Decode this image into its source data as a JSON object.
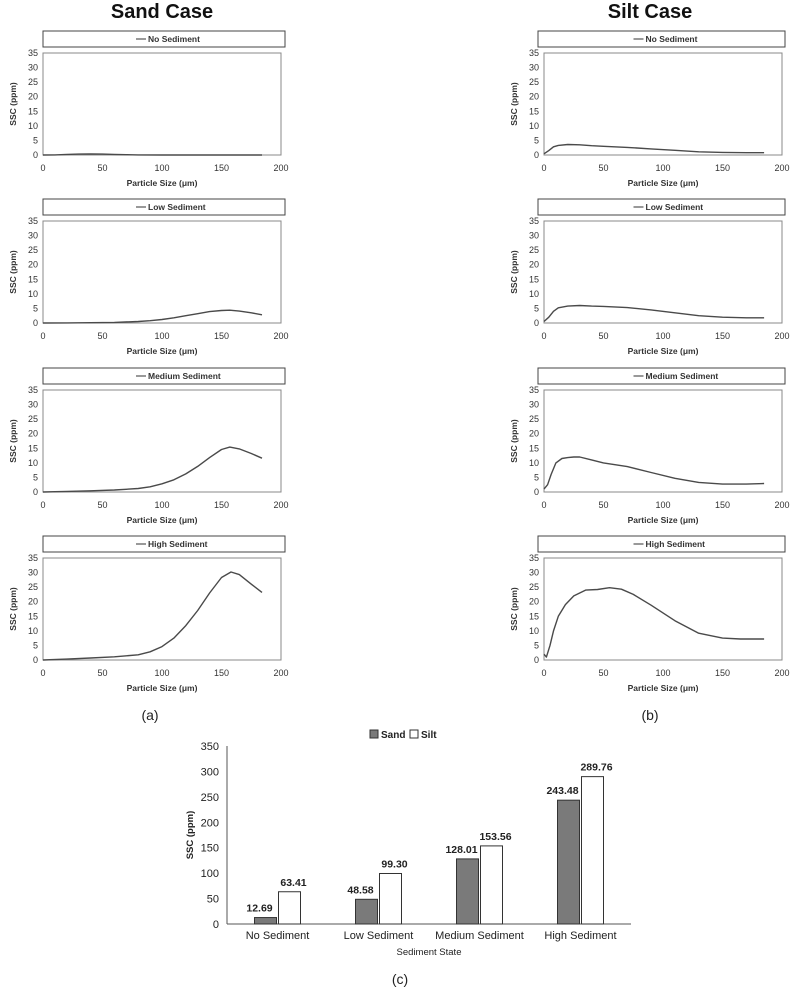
{
  "panel_titles": {
    "sand": "Sand Case",
    "silt": "Silt Case"
  },
  "subfigure_labels": {
    "a": "(a)",
    "b": "(b)",
    "c": "(c)"
  },
  "chart_data": [
    {
      "type": "line",
      "panel": "(a)",
      "case": "Sand Case",
      "legend": "No Sediment",
      "xlabel": "Particle Size (μm)",
      "ylabel": "SSC (ppm)",
      "xlim": [
        0,
        200
      ],
      "ylim": [
        0,
        35
      ],
      "xticks": [
        "0",
        "50",
        "100",
        "150",
        "200"
      ],
      "yticks": [
        "0",
        "5",
        "10",
        "15",
        "20",
        "25",
        "30",
        "35"
      ],
      "series": [
        {
          "name": "No Sediment",
          "x": [
            0,
            10,
            20,
            30,
            40,
            50,
            60,
            70,
            80,
            100,
            120,
            140,
            160,
            184
          ],
          "y": [
            0,
            0.05,
            0.2,
            0.3,
            0.35,
            0.3,
            0.2,
            0.1,
            0.05,
            0,
            0,
            0,
            0,
            0
          ]
        }
      ]
    },
    {
      "type": "line",
      "panel": "(a)",
      "case": "Sand Case",
      "legend": "Low Sediment",
      "xlabel": "Particle Size (μm)",
      "ylabel": "SSC (ppm)",
      "xlim": [
        0,
        200
      ],
      "ylim": [
        0,
        35
      ],
      "xticks": [
        "0",
        "50",
        "100",
        "150",
        "200"
      ],
      "yticks": [
        "0",
        "5",
        "10",
        "15",
        "20",
        "25",
        "30",
        "35"
      ],
      "series": [
        {
          "name": "Low Sediment",
          "x": [
            0,
            20,
            40,
            60,
            80,
            90,
            100,
            110,
            120,
            130,
            140,
            150,
            157,
            165,
            175,
            184
          ],
          "y": [
            0,
            0.05,
            0.1,
            0.2,
            0.5,
            0.8,
            1.2,
            1.8,
            2.5,
            3.2,
            3.9,
            4.3,
            4.4,
            4.1,
            3.5,
            2.8
          ]
        }
      ]
    },
    {
      "type": "line",
      "panel": "(a)",
      "case": "Sand Case",
      "legend": "Medium Sediment",
      "xlabel": "Particle Size (μm)",
      "ylabel": "SSC (ppm)",
      "xlim": [
        0,
        200
      ],
      "ylim": [
        0,
        35
      ],
      "xticks": [
        "0",
        "50",
        "100",
        "150",
        "200"
      ],
      "yticks": [
        "0",
        "5",
        "10",
        "15",
        "20",
        "25",
        "30",
        "35"
      ],
      "series": [
        {
          "name": "Medium Sediment",
          "x": [
            0,
            20,
            40,
            60,
            80,
            90,
            100,
            110,
            120,
            130,
            140,
            150,
            157,
            165,
            175,
            184
          ],
          "y": [
            0,
            0.2,
            0.4,
            0.7,
            1.2,
            1.8,
            2.8,
            4.2,
            6.2,
            8.8,
            11.8,
            14.6,
            15.4,
            14.8,
            13.2,
            11.6
          ]
        }
      ]
    },
    {
      "type": "line",
      "panel": "(a)",
      "case": "Sand Case",
      "legend": "High Sediment",
      "xlabel": "Particle Size (μm)",
      "ylabel": "SSC (ppm)",
      "xlim": [
        0,
        200
      ],
      "ylim": [
        0,
        35
      ],
      "xticks": [
        "0",
        "50",
        "100",
        "150",
        "200"
      ],
      "yticks": [
        "0",
        "5",
        "10",
        "15",
        "20",
        "25",
        "30",
        "35"
      ],
      "series": [
        {
          "name": "High Sediment",
          "x": [
            0,
            20,
            40,
            60,
            80,
            90,
            100,
            110,
            120,
            130,
            140,
            150,
            158,
            165,
            175,
            184
          ],
          "y": [
            0,
            0.3,
            0.7,
            1.1,
            1.8,
            2.8,
            4.6,
            7.5,
            11.8,
            17.0,
            23.0,
            28.3,
            30.2,
            29.3,
            26.0,
            23.2
          ]
        }
      ]
    },
    {
      "type": "line",
      "panel": "(b)",
      "case": "Silt Case",
      "legend": "No Sediment",
      "xlabel": "Particle Size (μm)",
      "ylabel": "SSC (ppm)",
      "xlim": [
        0,
        200
      ],
      "ylim": [
        0,
        35
      ],
      "xticks": [
        "0",
        "50",
        "100",
        "150",
        "200"
      ],
      "yticks": [
        "0",
        "5",
        "10",
        "15",
        "20",
        "25",
        "30",
        "35"
      ],
      "series": [
        {
          "name": "No Sediment",
          "x": [
            0,
            4,
            8,
            12,
            20,
            30,
            40,
            50,
            70,
            90,
            110,
            130,
            150,
            170,
            185
          ],
          "y": [
            0.4,
            1.5,
            2.8,
            3.3,
            3.6,
            3.5,
            3.2,
            3.0,
            2.6,
            2.1,
            1.6,
            1.1,
            0.9,
            0.8,
            0.8
          ]
        }
      ]
    },
    {
      "type": "line",
      "panel": "(b)",
      "case": "Silt Case",
      "legend": "Low Sediment",
      "xlabel": "Particle Size (μm)",
      "ylabel": "SSC (ppm)",
      "xlim": [
        0,
        200
      ],
      "ylim": [
        0,
        35
      ],
      "xticks": [
        "0",
        "50",
        "100",
        "150",
        "200"
      ],
      "yticks": [
        "0",
        "5",
        "10",
        "15",
        "20",
        "25",
        "30",
        "35"
      ],
      "series": [
        {
          "name": "Low Sediment",
          "x": [
            0,
            4,
            8,
            12,
            20,
            30,
            40,
            50,
            70,
            90,
            110,
            130,
            150,
            170,
            185
          ],
          "y": [
            0.5,
            2.0,
            4.0,
            5.2,
            5.8,
            6.0,
            5.8,
            5.7,
            5.3,
            4.5,
            3.5,
            2.5,
            2.0,
            1.8,
            1.8
          ]
        }
      ]
    },
    {
      "type": "line",
      "panel": "(b)",
      "case": "Silt Case",
      "legend": "Medium Sediment",
      "xlabel": "Particle Size (μm)",
      "ylabel": "SSC (ppm)",
      "xlim": [
        0,
        200
      ],
      "ylim": [
        0,
        35
      ],
      "xticks": [
        "0",
        "50",
        "100",
        "150",
        "200"
      ],
      "yticks": [
        "0",
        "5",
        "10",
        "15",
        "20",
        "25",
        "30",
        "35"
      ],
      "series": [
        {
          "name": "Medium Sediment",
          "x": [
            0,
            3,
            6,
            10,
            15,
            20,
            25,
            30,
            40,
            50,
            70,
            90,
            110,
            130,
            150,
            170,
            185
          ],
          "y": [
            1,
            2.5,
            6,
            10,
            11.5,
            11.8,
            12,
            12,
            11,
            10,
            8.7,
            6.7,
            4.7,
            3.3,
            2.7,
            2.7,
            2.9
          ]
        }
      ]
    },
    {
      "type": "line",
      "panel": "(b)",
      "case": "Silt Case",
      "legend": "High Sediment",
      "xlabel": "Particle Size (μm)",
      "ylabel": "SSC (ppm)",
      "xlim": [
        0,
        200
      ],
      "ylim": [
        0,
        35
      ],
      "xticks": [
        "0",
        "50",
        "100",
        "150",
        "200"
      ],
      "yticks": [
        "0",
        "5",
        "10",
        "15",
        "20",
        "25",
        "30",
        "35"
      ],
      "series": [
        {
          "name": "High Sediment",
          "x": [
            0,
            2,
            5,
            8,
            12,
            18,
            25,
            35,
            45,
            55,
            65,
            75,
            90,
            110,
            130,
            150,
            165,
            185
          ],
          "y": [
            2,
            1,
            5,
            10,
            15,
            19,
            22,
            24,
            24.2,
            24.8,
            24.3,
            22.5,
            18.8,
            13.5,
            9.2,
            7.5,
            7.2,
            7.2
          ]
        }
      ]
    },
    {
      "type": "bar",
      "panel": "(c)",
      "categories": [
        "No Sediment",
        "Low Sediment",
        "Medium Sediment",
        "High Sediment"
      ],
      "series": [
        {
          "name": "Sand",
          "values": [
            12.69,
            48.58,
            128.01,
            243.48
          ],
          "labels": [
            "12.69",
            "48.58",
            "128.01",
            "243.48"
          ],
          "color": "#7a7a7a"
        },
        {
          "name": "Silt",
          "values": [
            63.41,
            99.3,
            153.56,
            289.76
          ],
          "labels": [
            "63.41",
            "99.30",
            "153.56",
            "289.76"
          ],
          "color": "#ffffff"
        }
      ],
      "xlabel": "Sediment State",
      "ylabel": "SSC (ppm)",
      "ylim": [
        0,
        350
      ],
      "yticks": [
        "0",
        "50",
        "100",
        "150",
        "200",
        "250",
        "300",
        "350"
      ],
      "legend_position": "top-center"
    }
  ]
}
